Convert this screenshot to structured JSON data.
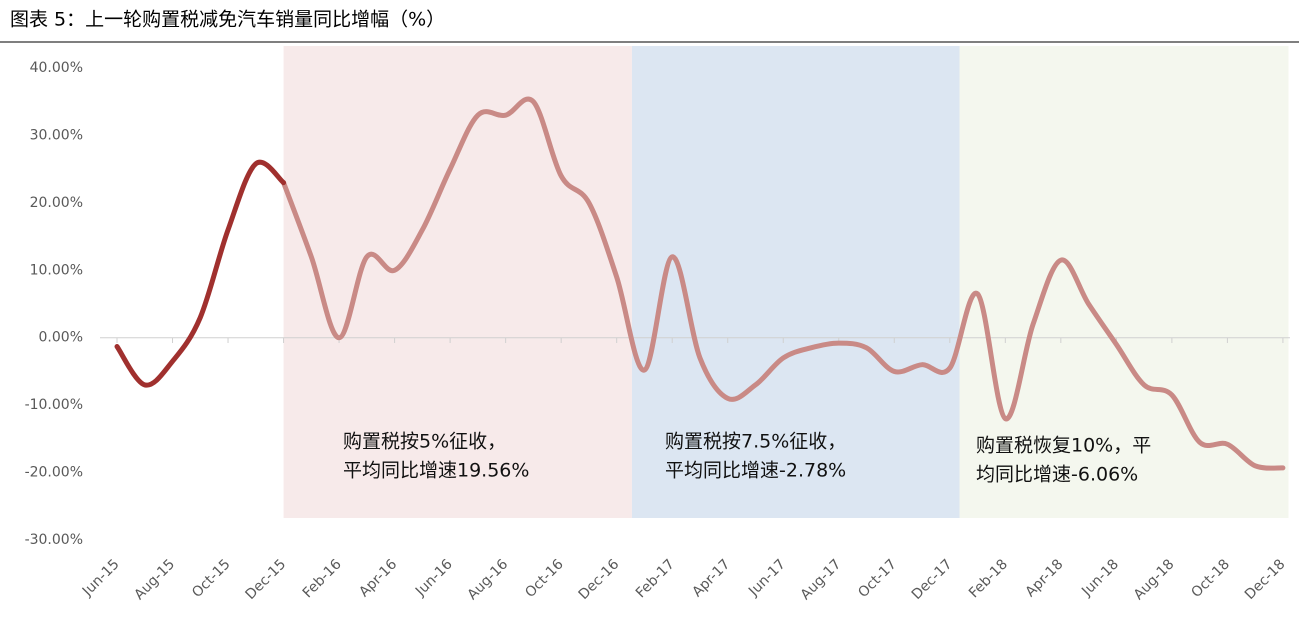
{
  "chart_data": {
    "type": "line",
    "title": "图表 5：上一轮购置税减免汽车销量同比增幅（%）",
    "categories": [
      "Jun-15",
      null,
      "Aug-15",
      null,
      "Oct-15",
      null,
      "Dec-15",
      null,
      "Feb-16",
      null,
      "Apr-16",
      null,
      "Jun-16",
      null,
      "Aug-16",
      null,
      "Oct-16",
      null,
      "Dec-16",
      null,
      "Feb-17",
      null,
      "Apr-17",
      null,
      "Jun-17",
      null,
      "Aug-17",
      null,
      "Oct-17",
      null,
      "Dec-17",
      null,
      "Feb-18",
      null,
      "Apr-18",
      null,
      "Jun-18",
      null,
      "Aug-18",
      null,
      "Oct-18",
      null,
      "Dec-18"
    ],
    "series": [
      {
        "color": "#a0302e",
        "values": [
          -1.3,
          -7,
          -3.5,
          3,
          16,
          25.8,
          23,
          null,
          null,
          null,
          null,
          null,
          null,
          null,
          null,
          null,
          null,
          null,
          null,
          null,
          null,
          null,
          null,
          null,
          null,
          null,
          null,
          null,
          null,
          null,
          null,
          null,
          null,
          null,
          null,
          null,
          null,
          null,
          null,
          null,
          null,
          null,
          null
        ]
      },
      {
        "color": "#c98a86",
        "values": [
          null,
          null,
          null,
          null,
          null,
          null,
          23,
          12,
          0,
          12,
          10,
          16,
          25,
          33,
          33,
          35,
          24,
          20,
          9,
          -4.8,
          12,
          -3,
          -9,
          -7,
          -3,
          -1.5,
          -0.8,
          -1.5,
          -5,
          -4,
          -4.5,
          6.5,
          -12,
          2,
          11.5,
          5,
          -1,
          -7,
          -8.5,
          -15.5,
          -15.8,
          -19,
          -19.3
        ]
      }
    ],
    "ylim": [
      -30,
      40
    ],
    "yticks": [
      {
        "value": -30,
        "label": "-30.00%"
      },
      {
        "value": -20,
        "label": "-20.00%"
      },
      {
        "value": -10,
        "label": "-10.00%"
      },
      {
        "value": 0,
        "label": "0.00%"
      },
      {
        "value": 10,
        "label": "10.00%"
      },
      {
        "value": 20,
        "label": "20.00%"
      },
      {
        "value": 30,
        "label": "30.00%"
      },
      {
        "value": 40,
        "label": "40.00%"
      }
    ],
    "regions": [
      {
        "start": 6,
        "end": 18.55,
        "color": "#f7eaea",
        "text": [
          "购置税按5%征收，",
          "平均同比增速19.56%"
        ]
      },
      {
        "start": 18.55,
        "end": 30.35,
        "color": "#dce6f2",
        "text": [
          "购置税按7.5%征收，",
          "平均同比增速-2.78%"
        ]
      },
      {
        "start": 30.35,
        "end": 42.2,
        "color": "#f4f7ee",
        "text": [
          "购置税恢复10%，平",
          "均同比增速-6.06%"
        ]
      }
    ]
  }
}
